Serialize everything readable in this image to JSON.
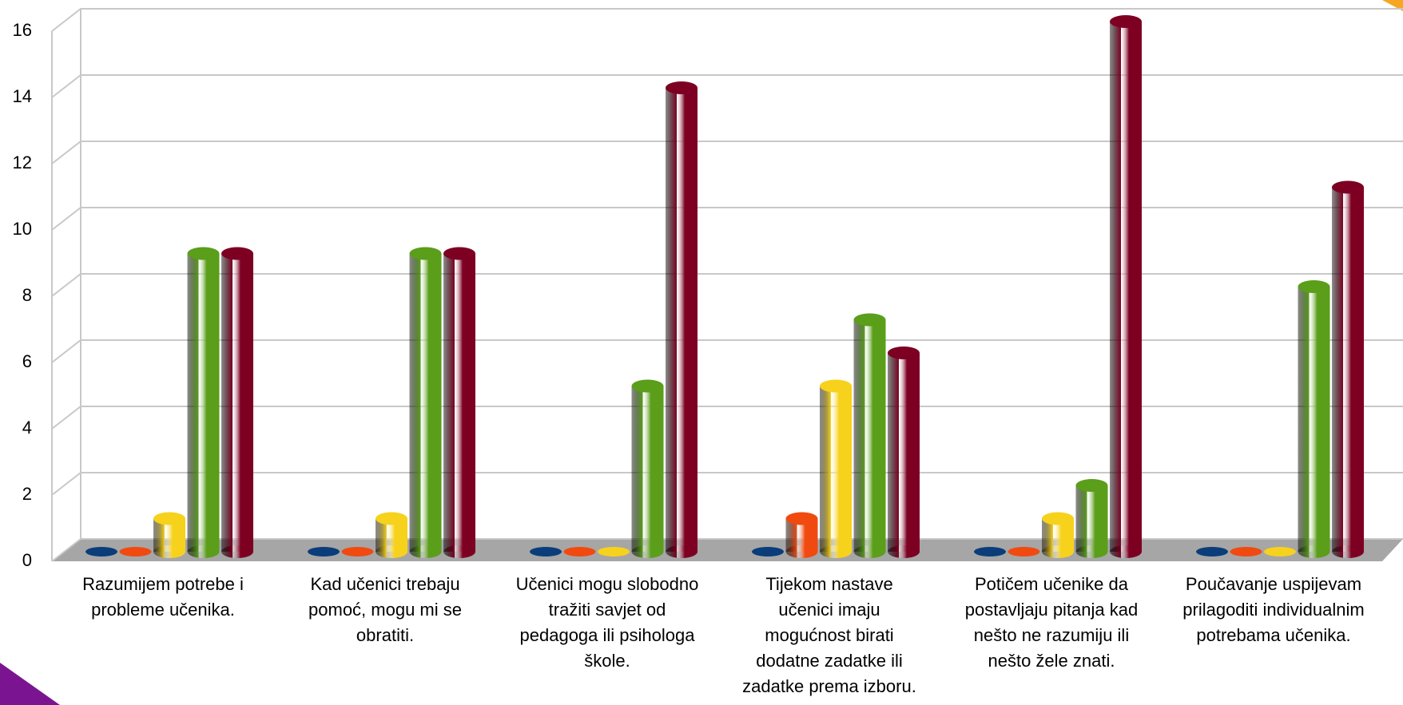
{
  "chart_data": {
    "type": "bar3d",
    "categories": [
      "Razumijem potrebe i probleme učenika.",
      "Kad učenici trebaju pomoć, mogu mi se obratiti.",
      "Učenici mogu slobodno tražiti savjet od pedagoga ili psihologa škole.",
      "Tijekom nastave učenici imaju mogućnost birati dodatne zadatke ili zadatke prema izboru.",
      "Potičem učenike da postavljaju pitanja kad nešto ne razumiju ili nešto žele znati.",
      "Poučavanje uspijevam prilagoditi individualnim potrebama učenika."
    ],
    "series": [
      {
        "color": "#0a3d7a",
        "values": [
          0,
          0,
          0,
          0,
          0,
          0
        ]
      },
      {
        "color": "#f04a10",
        "values": [
          0,
          0,
          0,
          1,
          0,
          0
        ]
      },
      {
        "color": "#f7d21c",
        "values": [
          1,
          1,
          0,
          5,
          1,
          0
        ]
      },
      {
        "color": "#5a9e1a",
        "values": [
          9,
          9,
          5,
          7,
          2,
          8
        ]
      },
      {
        "color": "#7d0022",
        "values": [
          9,
          9,
          14,
          6,
          16,
          11
        ]
      }
    ],
    "ylim": [
      0,
      16
    ],
    "yticks": [
      0,
      2,
      4,
      6,
      8,
      10,
      12,
      14,
      16
    ],
    "grid": true
  }
}
